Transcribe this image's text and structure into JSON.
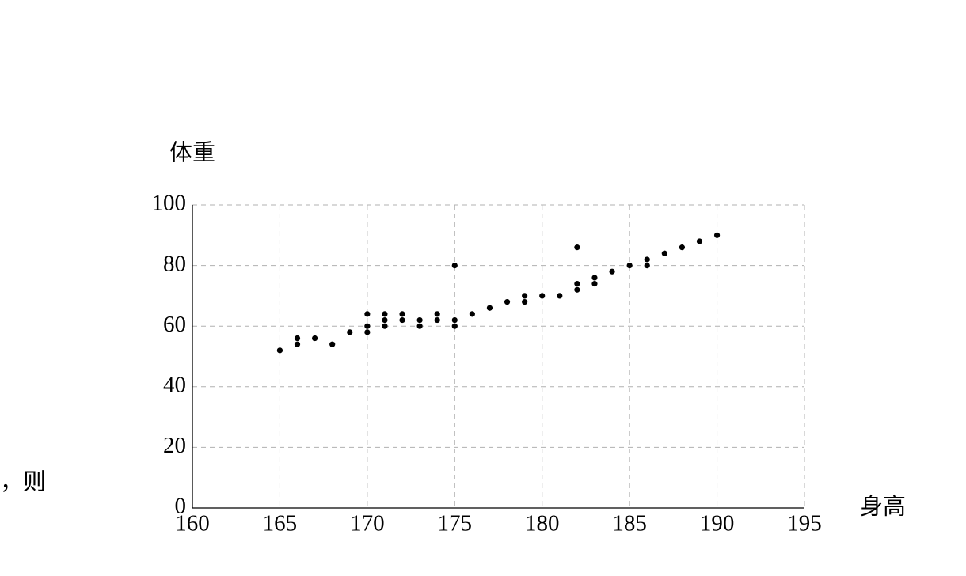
{
  "chart_data": {
    "type": "scatter",
    "x_label": "身高",
    "y_label": "体重",
    "annotations": [
      "，则"
    ],
    "x": [
      165,
      166,
      166,
      167,
      168,
      169,
      170,
      170,
      170,
      171,
      171,
      171,
      172,
      172,
      173,
      173,
      174,
      174,
      175,
      175,
      175,
      176,
      177,
      178,
      179,
      179,
      180,
      181,
      182,
      182,
      182,
      183,
      183,
      184,
      185,
      186,
      186,
      187,
      188,
      189,
      190
    ],
    "values": [
      52,
      56,
      54,
      56,
      54,
      58,
      64,
      60,
      58,
      64,
      62,
      60,
      64,
      62,
      62,
      60,
      64,
      62,
      80,
      62,
      60,
      64,
      66,
      68,
      70,
      68,
      70,
      70,
      86,
      74,
      72,
      76,
      74,
      78,
      80,
      82,
      80,
      84,
      86,
      88,
      90
    ],
    "color": "#000000",
    "xlim": [
      160,
      195
    ],
    "xticks": [
      160,
      165,
      170,
      175,
      180,
      185,
      190,
      195
    ],
    "ylim": [
      0,
      100
    ],
    "yticks": [
      0,
      20,
      40,
      60,
      80,
      100
    ],
    "grid": true
  }
}
